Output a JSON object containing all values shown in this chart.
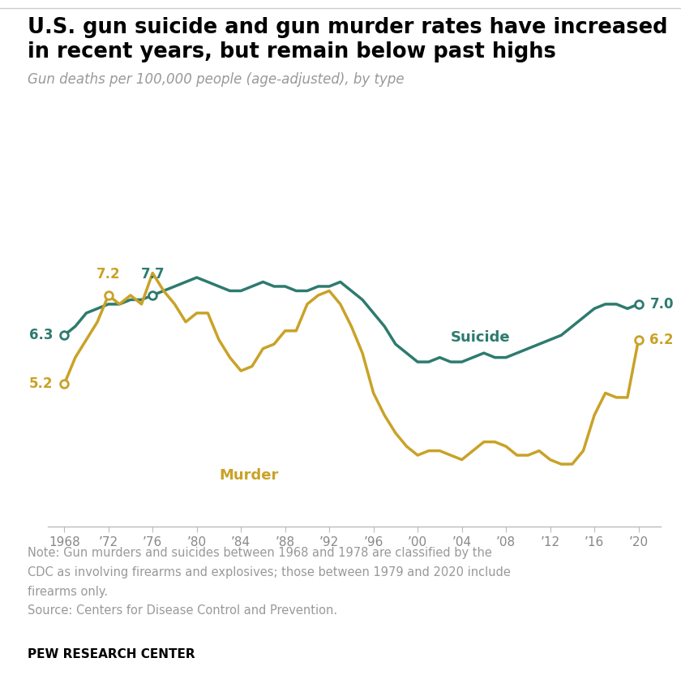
{
  "title_line1": "U.S. gun suicide and gun murder rates have increased",
  "title_line2": "in recent years, but remain below past highs",
  "subtitle": "Gun deaths per 100,000 people (age-adjusted), by type",
  "note_line1": "Note: Gun murders and suicides between 1968 and 1978 are classified by the",
  "note_line2": "CDC as involving firearms and explosives; those between 1979 and 2020 include",
  "note_line3": "firearms only.",
  "note_line4": "Source: Centers for Disease Control and Prevention.",
  "footer": "PEW RESEARCH CENTER",
  "suicide_color": "#2D7B6E",
  "murder_color": "#C9A227",
  "background_color": "#FFFFFF",
  "text_gray": "#999999",
  "years": [
    1968,
    1969,
    1970,
    1971,
    1972,
    1973,
    1974,
    1975,
    1976,
    1977,
    1978,
    1979,
    1980,
    1981,
    1982,
    1983,
    1984,
    1985,
    1986,
    1987,
    1988,
    1989,
    1990,
    1991,
    1992,
    1993,
    1994,
    1995,
    1996,
    1997,
    1998,
    1999,
    2000,
    2001,
    2002,
    2003,
    2004,
    2005,
    2006,
    2007,
    2008,
    2009,
    2010,
    2011,
    2012,
    2013,
    2014,
    2015,
    2016,
    2017,
    2018,
    2019,
    2020
  ],
  "suicide": [
    6.3,
    6.5,
    6.8,
    6.9,
    7.0,
    7.0,
    7.1,
    7.1,
    7.2,
    7.3,
    7.4,
    7.5,
    7.6,
    7.5,
    7.4,
    7.3,
    7.3,
    7.4,
    7.5,
    7.4,
    7.4,
    7.3,
    7.3,
    7.4,
    7.4,
    7.5,
    7.3,
    7.1,
    6.8,
    6.5,
    6.1,
    5.9,
    5.7,
    5.7,
    5.8,
    5.7,
    5.7,
    5.8,
    5.9,
    5.8,
    5.8,
    5.9,
    6.0,
    6.1,
    6.2,
    6.3,
    6.5,
    6.7,
    6.9,
    7.0,
    7.0,
    6.9,
    7.0
  ],
  "murder": [
    5.2,
    5.8,
    6.2,
    6.6,
    7.2,
    7.0,
    7.2,
    7.0,
    7.7,
    7.3,
    7.0,
    6.6,
    6.8,
    6.8,
    6.2,
    5.8,
    5.5,
    5.6,
    6.0,
    6.1,
    6.4,
    6.4,
    7.0,
    7.2,
    7.3,
    7.0,
    6.5,
    5.9,
    5.0,
    4.5,
    4.1,
    3.8,
    3.6,
    3.7,
    3.7,
    3.6,
    3.5,
    3.7,
    3.9,
    3.9,
    3.8,
    3.6,
    3.6,
    3.7,
    3.5,
    3.4,
    3.4,
    3.7,
    4.5,
    5.0,
    4.9,
    4.9,
    6.2
  ],
  "xlim_min": 1966.5,
  "xlim_max": 2022.0,
  "ylim_min": 2.0,
  "ylim_max": 9.2,
  "xticks": [
    1968,
    1972,
    1976,
    1980,
    1984,
    1988,
    1992,
    1996,
    2000,
    2004,
    2008,
    2012,
    2016,
    2020
  ],
  "xticklabels": [
    "1968",
    "’72",
    "’76",
    "’80",
    "’84",
    "’88",
    "’92",
    "’96",
    "’00",
    "’04",
    "’08",
    "’12",
    "’16",
    "’20"
  ]
}
